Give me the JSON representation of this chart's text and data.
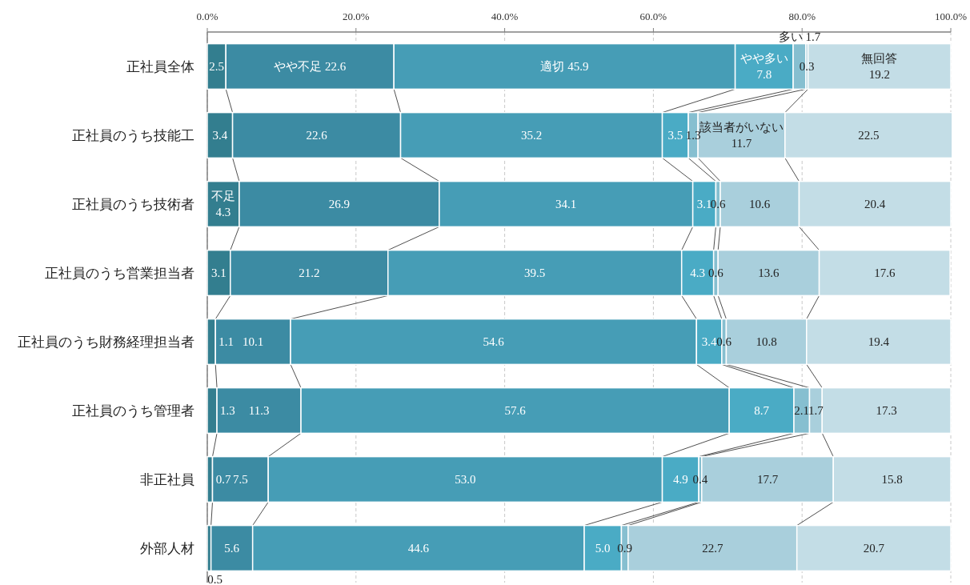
{
  "chart_data": {
    "type": "bar",
    "orientation": "horizontal",
    "stacked": true,
    "grid": "x",
    "categories": [
      "正社員全体",
      "正社員のうち技能工",
      "正社員のうち技術者",
      "正社員のうち営業担当者",
      "正社員のうち財務経理担当者",
      "正社員のうち管理者",
      "非正社員",
      "外部人材"
    ],
    "xlim": [
      0,
      100
    ],
    "xticks": [
      {
        "value": 0,
        "label": "0.0%"
      },
      {
        "value": 20,
        "label": "20.0%"
      },
      {
        "value": 40,
        "label": "40.0%"
      },
      {
        "value": 60,
        "label": "60.0%"
      },
      {
        "value": 80,
        "label": "80.0%"
      },
      {
        "value": 100,
        "label": "100.0%"
      }
    ],
    "series": [
      {
        "color": "#337e8f",
        "values": [
          2.5,
          3.4,
          4.3,
          3.1,
          1.1,
          1.3,
          0.7,
          0.5
        ],
        "value_labels": [
          "2.5",
          "3.4",
          "不足\n4.3",
          "3.1",
          "1.1",
          "1.3",
          "0.7",
          "0.5"
        ]
      },
      {
        "color": "#3c8ba3",
        "values": [
          22.6,
          22.6,
          26.9,
          21.2,
          10.1,
          11.3,
          7.5,
          5.6
        ],
        "value_labels": [
          "やや不足 22.6",
          "22.6",
          "26.9",
          "21.2",
          "10.1",
          "11.3",
          "7.5",
          "5.6"
        ]
      },
      {
        "color": "#469db6",
        "values": [
          45.9,
          35.2,
          34.1,
          39.5,
          54.6,
          57.6,
          53.0,
          44.6
        ],
        "value_labels": [
          "適切 45.9",
          "35.2",
          "34.1",
          "39.5",
          "54.6",
          "57.6",
          "53.0",
          "44.6"
        ]
      },
      {
        "color": "#4aabc5",
        "values": [
          7.8,
          3.5,
          3.1,
          4.3,
          3.4,
          8.7,
          4.9,
          5.0
        ],
        "value_labels": [
          "やや多い\n7.8",
          "3.5",
          "3.1",
          "4.3",
          "3.4",
          "8.7",
          "4.9",
          "5.0"
        ]
      },
      {
        "color": "#86bfd0",
        "values": [
          1.7,
          1.3,
          0.6,
          0.6,
          0.6,
          2.1,
          0.4,
          0.9
        ],
        "value_labels": [
          "多い 1.7",
          "1.3",
          "0.6",
          "0.6",
          "0.6",
          "2.1",
          "0.4",
          "0.9"
        ]
      },
      {
        "color": "#a9cfdc",
        "values": [
          0.3,
          11.7,
          10.6,
          13.6,
          10.8,
          1.7,
          17.7,
          22.7
        ],
        "value_labels": [
          "0.3",
          "該当者がいない\n11.7",
          "10.6",
          "13.6",
          "10.8",
          "1.7",
          "17.7",
          "22.7"
        ]
      },
      {
        "color": "#c3dde6",
        "values": [
          19.2,
          22.5,
          20.4,
          17.6,
          19.4,
          17.3,
          15.8,
          20.7
        ],
        "value_labels": [
          "無回答\n19.2",
          "22.5",
          "20.4",
          "17.6",
          "19.4",
          "17.3",
          "15.8",
          "20.7"
        ]
      }
    ]
  }
}
